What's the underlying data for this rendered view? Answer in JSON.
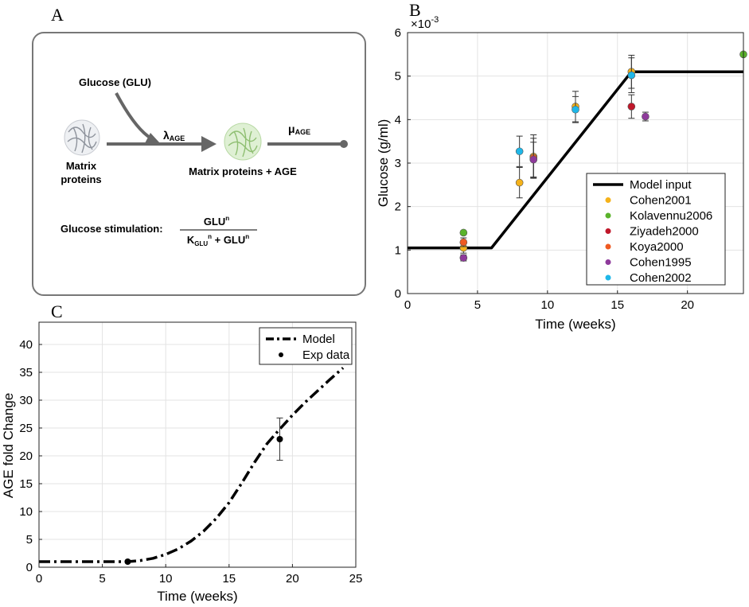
{
  "panel_labels": {
    "a": "A",
    "b": "B",
    "c": "C"
  },
  "diagram": {
    "glucose_label": "Glucose (GLU)",
    "matrix_line1": "Matrix",
    "matrix_line2": "proteins",
    "lambda_main": "λ",
    "lambda_sub": "AGE",
    "mu_main": "μ",
    "mu_sub": "AGE",
    "product_label": "Matrix proteins + AGE",
    "stim_label": "Glucose stimulation:",
    "num_main": "GLU",
    "num_sup": "n",
    "den_k": "K",
    "den_k_sub": "GLU",
    "den_k_sup": "n",
    "den_plus": " + GLU",
    "den_sup": "n"
  },
  "chart_data": [
    {
      "id": "B",
      "type": "line",
      "title": "",
      "xlabel": "Time (weeks)",
      "ylabel": "Glucose (g/ml)",
      "exponent_label": "×10",
      "exponent_power": "-3",
      "xlim": [
        0,
        24
      ],
      "ylim": [
        0,
        6
      ],
      "xticks": [
        "0",
        "5",
        "10",
        "15",
        "20"
      ],
      "yticks": [
        "0",
        "1",
        "2",
        "3",
        "4",
        "5",
        "6"
      ],
      "grid": true,
      "legend_position": "bottom-right",
      "model": {
        "name": "Model input",
        "color": "#000000",
        "x": [
          0,
          6,
          16,
          24
        ],
        "y": [
          1.05,
          1.05,
          5.1,
          5.1
        ]
      },
      "series": [
        {
          "name": "Cohen2001",
          "color": "#f5b21a",
          "points": [
            {
              "x": 4,
              "y": 1.05,
              "err": 0.12
            },
            {
              "x": 8,
              "y": 2.55,
              "err": 0.35
            },
            {
              "x": 9,
              "y": 3.15,
              "err": 0.5
            },
            {
              "x": 12,
              "y": 4.3,
              "err": 0.35
            },
            {
              "x": 16,
              "y": 5.1,
              "err": 0.38
            }
          ]
        },
        {
          "name": "Kolavennu2006",
          "color": "#5ab32b",
          "points": [
            {
              "x": 4,
              "y": 1.4,
              "err": 0
            },
            {
              "x": 24,
              "y": 5.5,
              "err": 0
            }
          ]
        },
        {
          "name": "Ziyadeh2000",
          "color": "#c0172a",
          "points": [
            {
              "x": 16,
              "y": 4.3,
              "err": 0.27
            }
          ]
        },
        {
          "name": "Koya2000",
          "color": "#ef5a22",
          "points": [
            {
              "x": 4,
              "y": 1.18,
              "err": 0.1
            },
            {
              "x": 9,
              "y": 3.12,
              "err": 0.45
            }
          ]
        },
        {
          "name": "Cohen1995",
          "color": "#8e3a9b",
          "points": [
            {
              "x": 4,
              "y": 0.82,
              "err": 0.07
            },
            {
              "x": 9,
              "y": 3.08,
              "err": 0.4
            },
            {
              "x": 17,
              "y": 4.07,
              "err": 0.1
            }
          ]
        },
        {
          "name": "Cohen2002",
          "color": "#1fb7e8",
          "points": [
            {
              "x": 8,
              "y": 3.27,
              "err": 0.35
            },
            {
              "x": 12,
              "y": 4.23,
              "err": 0.3
            },
            {
              "x": 16,
              "y": 5.02,
              "err": 0.4
            }
          ]
        }
      ]
    },
    {
      "id": "C",
      "type": "line",
      "title": "",
      "xlabel": "Time (weeks)",
      "ylabel": "AGE fold Change",
      "xlim": [
        0,
        25
      ],
      "ylim": [
        0,
        44
      ],
      "xticks": [
        "0",
        "5",
        "10",
        "15",
        "20",
        "25"
      ],
      "yticks": [
        "0",
        "5",
        "10",
        "15",
        "20",
        "25",
        "30",
        "35",
        "40"
      ],
      "grid": true,
      "legend_position": "top-right",
      "model": {
        "name": "Model",
        "x": [
          0,
          7,
          8,
          9,
          10,
          11,
          12,
          13,
          14,
          15,
          16,
          17,
          18,
          19,
          20,
          21,
          22,
          23,
          24
        ],
        "y": [
          1,
          1,
          1.2,
          1.6,
          2.3,
          3.3,
          4.7,
          6.5,
          8.8,
          11.6,
          15.1,
          18.8,
          22.2,
          24.8,
          27.3,
          29.6,
          31.7,
          33.8,
          35.8
        ]
      },
      "exp_data": {
        "name": "Exp data",
        "points": [
          {
            "x": 7,
            "y": 1,
            "err": 0
          },
          {
            "x": 19,
            "y": 23,
            "err": 3.8
          }
        ]
      }
    }
  ]
}
